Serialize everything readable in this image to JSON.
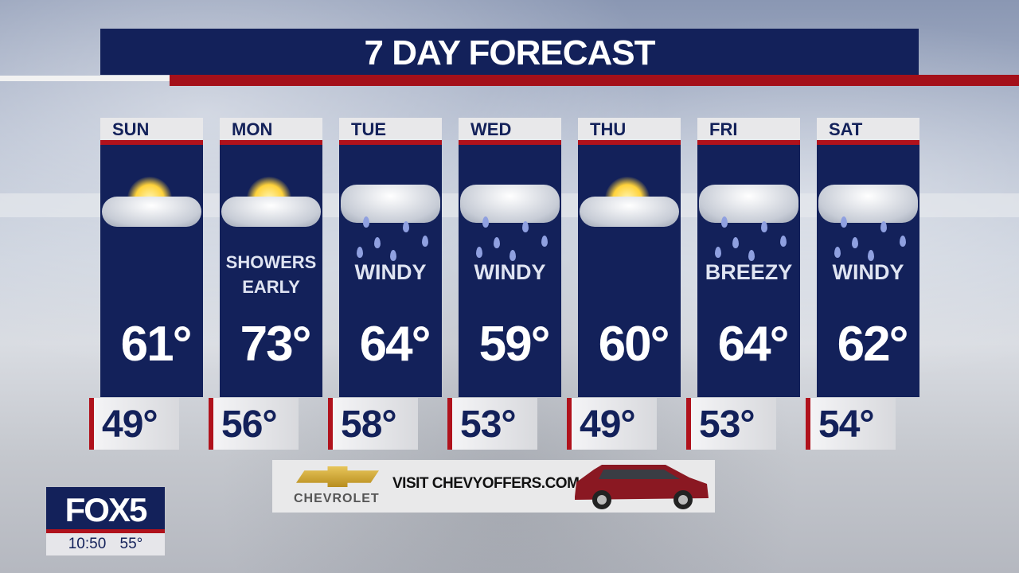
{
  "title": "7 DAY FORECAST",
  "days": [
    {
      "day": "SUN",
      "icon": "partly-sunny-icon",
      "condition": "",
      "high": "61°",
      "low": "49°"
    },
    {
      "day": "MON",
      "icon": "partly-sunny-icon",
      "condition": "SHOWERS EARLY",
      "high": "73°",
      "low": "56°"
    },
    {
      "day": "TUE",
      "icon": "rain-cloud-icon",
      "condition": "WINDY",
      "high": "64°",
      "low": "58°"
    },
    {
      "day": "WED",
      "icon": "rain-cloud-icon",
      "condition": "WINDY",
      "high": "59°",
      "low": "53°"
    },
    {
      "day": "THU",
      "icon": "partly-sunny-icon",
      "condition": "",
      "high": "60°",
      "low": "49°"
    },
    {
      "day": "FRI",
      "icon": "rain-cloud-icon",
      "condition": "BREEZY",
      "high": "64°",
      "low": "53°"
    },
    {
      "day": "SAT",
      "icon": "rain-cloud-icon",
      "condition": "WINDY",
      "high": "62°",
      "low": "54°"
    }
  ],
  "ad": {
    "brand": "CHEVROLET",
    "text": "VISIT CHEVYOFFERS.COM"
  },
  "station": {
    "logo": "FOX5",
    "time": "10:50",
    "temp": "55°"
  },
  "colors": {
    "navy": "#13215a",
    "red": "#b0121c"
  }
}
